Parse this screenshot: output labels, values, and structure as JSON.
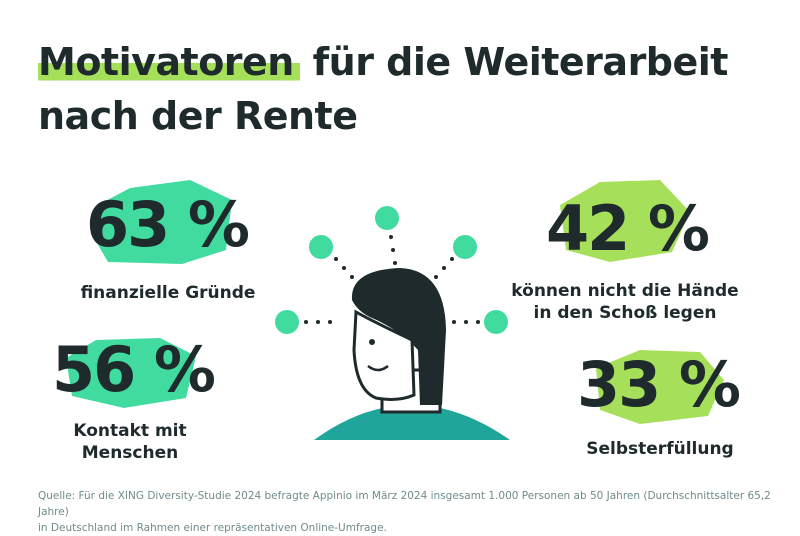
{
  "header": {
    "title_highlight": "Motivatoren",
    "title_line1_rest": " für die Weiterarbeit",
    "title_line2": "nach der Rente"
  },
  "stats": [
    {
      "value": "63 %",
      "label": [
        "finanzielle Gründe"
      ]
    },
    {
      "value": "42 %",
      "label": [
        "können nicht die Hände",
        "in den Schoß legen"
      ]
    },
    {
      "value": "56 %",
      "label": [
        "Kontakt mit",
        "Menschen"
      ]
    },
    {
      "value": "33 %",
      "label": [
        "Selbsterfüllung"
      ]
    }
  ],
  "source": [
    "Quelle: Für die XING Diversity-Studie 2024 befragte Appinio im März 2024 insgesamt 1.000 Personen ab 50 Jahren (Durchschnittsalter 65,2 Jahre)",
    "in Deutschland im Rahmen einer repräsentativen Online-Umfrage."
  ]
}
